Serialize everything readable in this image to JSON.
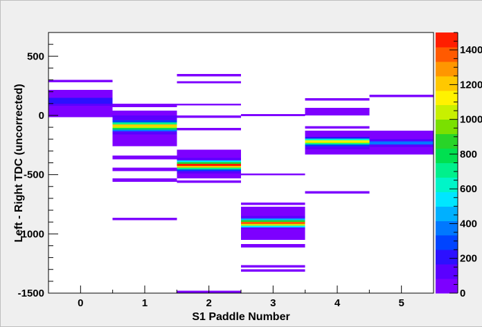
{
  "chart_data": {
    "type": "heatmap",
    "title": "",
    "xlabel": "S1 Paddle Number",
    "ylabel": "Left - Right TDC (uncorrected)",
    "x_bin_edges": [
      -0.5,
      5.5
    ],
    "xlim": [
      -0.5,
      5.5
    ],
    "ylim": [
      -1500,
      700
    ],
    "x_ticks": [
      0,
      1,
      2,
      3,
      4,
      5
    ],
    "y_ticks": [
      -1500,
      -1000,
      -500,
      0,
      500
    ],
    "color_scale": {
      "min": 0,
      "max": 1500,
      "ticks": [
        0,
        200,
        400,
        600,
        800,
        1000,
        1200,
        1400
      ],
      "colors": [
        "#7d00ff",
        "#5a00ff",
        "#2c10ff",
        "#0044ff",
        "#0078ff",
        "#00b0ff",
        "#00e6ff",
        "#00f5c8",
        "#00f08c",
        "#00e050",
        "#28d428",
        "#7ae000",
        "#c8f000",
        "#fff200",
        "#ffc800",
        "#ff9600",
        "#ff5a00",
        "#ff1e00"
      ]
    },
    "bins": [
      {
        "x": 0,
        "y0": 280,
        "y1": 300,
        "value": 30
      },
      {
        "x": 0,
        "y0": 150,
        "y1": 215,
        "value": 60
      },
      {
        "x": 0,
        "y0": 100,
        "y1": 150,
        "value": 200
      },
      {
        "x": 0,
        "y0": 80,
        "y1": 100,
        "value": 100
      },
      {
        "x": 0,
        "y0": -15,
        "y1": 80,
        "value": 60
      },
      {
        "x": 1,
        "y0": 70,
        "y1": 100,
        "value": 30
      },
      {
        "x": 1,
        "y0": 0,
        "y1": 40,
        "value": 30
      },
      {
        "x": 1,
        "y0": -40,
        "y1": 0,
        "value": 120
      },
      {
        "x": 1,
        "y0": -60,
        "y1": -40,
        "value": 300
      },
      {
        "x": 1,
        "y0": -75,
        "y1": -60,
        "value": 700
      },
      {
        "x": 1,
        "y0": -90,
        "y1": -75,
        "value": 1200
      },
      {
        "x": 1,
        "y0": -105,
        "y1": -90,
        "value": 1050
      },
      {
        "x": 1,
        "y0": -120,
        "y1": -105,
        "value": 780
      },
      {
        "x": 1,
        "y0": -135,
        "y1": -120,
        "value": 400
      },
      {
        "x": 1,
        "y0": -160,
        "y1": -135,
        "value": 120
      },
      {
        "x": 1,
        "y0": -260,
        "y1": -160,
        "value": 60
      },
      {
        "x": 1,
        "y0": -370,
        "y1": -340,
        "value": 30
      },
      {
        "x": 1,
        "y0": -470,
        "y1": -440,
        "value": 30
      },
      {
        "x": 1,
        "y0": -560,
        "y1": -530,
        "value": 30
      },
      {
        "x": 1,
        "y0": -885,
        "y1": -865,
        "value": 30
      },
      {
        "x": 2,
        "y0": 330,
        "y1": 350,
        "value": 30
      },
      {
        "x": 2,
        "y0": 270,
        "y1": 290,
        "value": 30
      },
      {
        "x": 2,
        "y0": 85,
        "y1": 100,
        "value": 30
      },
      {
        "x": 2,
        "y0": -20,
        "y1": 0,
        "value": 30
      },
      {
        "x": 2,
        "y0": -125,
        "y1": -105,
        "value": 30
      },
      {
        "x": 2,
        "y0": -300,
        "y1": -290,
        "value": 30
      },
      {
        "x": 2,
        "y0": -360,
        "y1": -300,
        "value": 60
      },
      {
        "x": 2,
        "y0": -380,
        "y1": -360,
        "value": 140
      },
      {
        "x": 2,
        "y0": -395,
        "y1": -380,
        "value": 500
      },
      {
        "x": 2,
        "y0": -410,
        "y1": -395,
        "value": 900
      },
      {
        "x": 2,
        "y0": -425,
        "y1": -410,
        "value": 1500
      },
      {
        "x": 2,
        "y0": -440,
        "y1": -425,
        "value": 1200
      },
      {
        "x": 2,
        "y0": -455,
        "y1": -440,
        "value": 700
      },
      {
        "x": 2,
        "y0": -470,
        "y1": -455,
        "value": 250
      },
      {
        "x": 2,
        "y0": -490,
        "y1": -470,
        "value": 100
      },
      {
        "x": 2,
        "y0": -530,
        "y1": -490,
        "value": 50
      },
      {
        "x": 2,
        "y0": -570,
        "y1": -550,
        "value": 30
      },
      {
        "x": 2,
        "y0": -1500,
        "y1": -1480,
        "value": 30
      },
      {
        "x": 3,
        "y0": -5,
        "y1": 10,
        "value": 30
      },
      {
        "x": 3,
        "y0": -505,
        "y1": -490,
        "value": 30
      },
      {
        "x": 3,
        "y0": -755,
        "y1": -735,
        "value": 30
      },
      {
        "x": 3,
        "y0": -850,
        "y1": -770,
        "value": 50
      },
      {
        "x": 3,
        "y0": -870,
        "y1": -850,
        "value": 120
      },
      {
        "x": 3,
        "y0": -885,
        "y1": -870,
        "value": 450
      },
      {
        "x": 3,
        "y0": -900,
        "y1": -885,
        "value": 900
      },
      {
        "x": 3,
        "y0": -915,
        "y1": -900,
        "value": 1350
      },
      {
        "x": 3,
        "y0": -930,
        "y1": -915,
        "value": 1000
      },
      {
        "x": 3,
        "y0": -945,
        "y1": -930,
        "value": 550
      },
      {
        "x": 3,
        "y0": -960,
        "y1": -945,
        "value": 150
      },
      {
        "x": 3,
        "y0": -1050,
        "y1": -960,
        "value": 55
      },
      {
        "x": 3,
        "y0": -1115,
        "y1": -1085,
        "value": 30
      },
      {
        "x": 3,
        "y0": -1285,
        "y1": -1265,
        "value": 30
      },
      {
        "x": 3,
        "y0": -1320,
        "y1": -1300,
        "value": 30
      },
      {
        "x": 4,
        "y0": 125,
        "y1": 145,
        "value": 30
      },
      {
        "x": 4,
        "y0": 0,
        "y1": 65,
        "value": 60
      },
      {
        "x": 4,
        "y0": -110,
        "y1": -90,
        "value": 30
      },
      {
        "x": 4,
        "y0": -180,
        "y1": -130,
        "value": 60
      },
      {
        "x": 4,
        "y0": -195,
        "y1": -180,
        "value": 200
      },
      {
        "x": 4,
        "y0": -210,
        "y1": -195,
        "value": 650
      },
      {
        "x": 4,
        "y0": -222,
        "y1": -210,
        "value": 1150
      },
      {
        "x": 4,
        "y0": -234,
        "y1": -222,
        "value": 1050
      },
      {
        "x": 4,
        "y0": -246,
        "y1": -234,
        "value": 700
      },
      {
        "x": 4,
        "y0": -260,
        "y1": -246,
        "value": 300
      },
      {
        "x": 4,
        "y0": -285,
        "y1": -260,
        "value": 110
      },
      {
        "x": 4,
        "y0": -330,
        "y1": -285,
        "value": 60
      },
      {
        "x": 4,
        "y0": -660,
        "y1": -640,
        "value": 30
      },
      {
        "x": 5,
        "y0": 155,
        "y1": 175,
        "value": 30
      },
      {
        "x": 5,
        "y0": -200,
        "y1": -130,
        "value": 60
      },
      {
        "x": 5,
        "y0": -220,
        "y1": -200,
        "value": 150
      },
      {
        "x": 5,
        "y0": -245,
        "y1": -220,
        "value": 350
      },
      {
        "x": 5,
        "y0": -265,
        "y1": -245,
        "value": 150
      },
      {
        "x": 5,
        "y0": -330,
        "y1": -265,
        "value": 60
      }
    ]
  }
}
